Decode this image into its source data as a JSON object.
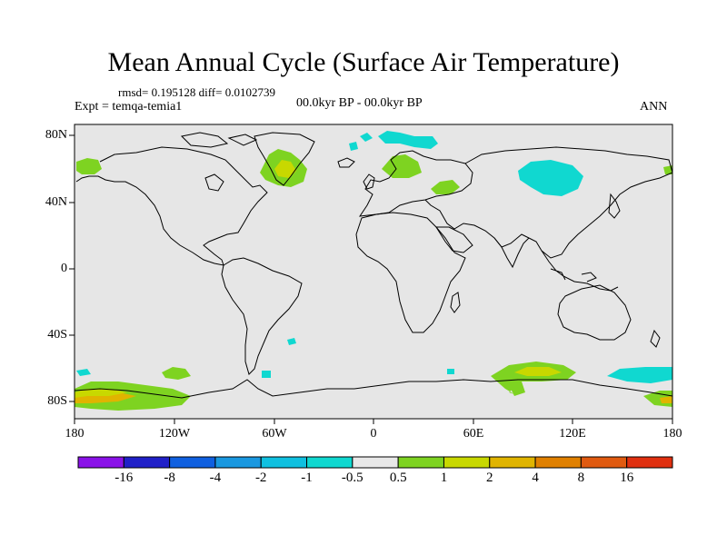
{
  "title": "Mean Annual Cycle (Surface Air Temperature)",
  "stats": "rmsd= 0.195128 diff= 0.0102739",
  "experiment": "Expt = temqa-temia1",
  "period": "00.0kyr BP - 00.0kyr BP",
  "season": "ANN",
  "map": {
    "projection": "cylindrical-equidistant",
    "background_color": "#e6e6e6",
    "lat_range": [
      -90,
      90
    ],
    "lon_range": [
      -180,
      180
    ],
    "lat_labels": [
      "80N",
      "40N",
      "0",
      "40S",
      "80S"
    ],
    "lat_values": [
      80,
      40,
      0,
      -40,
      -80
    ],
    "lon_labels": [
      "180",
      "120W",
      "60W",
      "0",
      "60E",
      "120E",
      "180"
    ],
    "lon_values": [
      -180,
      -120,
      -60,
      0,
      60,
      120,
      180
    ],
    "anomaly_patches": [
      {
        "region": "north-america-arctic",
        "level": "1"
      },
      {
        "region": "greenland",
        "level": "1"
      },
      {
        "region": "greenland-core",
        "level": "2"
      },
      {
        "region": "scandinavia",
        "level": "1"
      },
      {
        "region": "barents-sea",
        "level": "-1"
      },
      {
        "region": "svalbard",
        "level": "-1"
      },
      {
        "region": "siberia",
        "level": "-1"
      },
      {
        "region": "ural",
        "level": "1"
      },
      {
        "region": "antarctica-ross",
        "level": "1"
      },
      {
        "region": "antarctica-ross-core",
        "level": "4"
      },
      {
        "region": "antarctica-east",
        "level": "1"
      },
      {
        "region": "antarctica-east-core",
        "level": "2"
      },
      {
        "region": "antarctica-wilkes",
        "level": "-1"
      },
      {
        "region": "southern-ocean-atlantic",
        "level": "-1"
      }
    ]
  },
  "colorbar": {
    "colors": [
      "#8a12e8",
      "#2020c8",
      "#1060e0",
      "#1a98e0",
      "#10c0e0",
      "#10d8d0",
      "#e8e8e8",
      "#7ed321",
      "#c8d800",
      "#e0b400",
      "#e08000",
      "#e05a10",
      "#e03010"
    ],
    "labels": [
      "-16",
      "-8",
      "-4",
      "-2",
      "-1",
      "-0.5",
      "0.5",
      "1",
      "2",
      "4",
      "8",
      "16"
    ]
  }
}
